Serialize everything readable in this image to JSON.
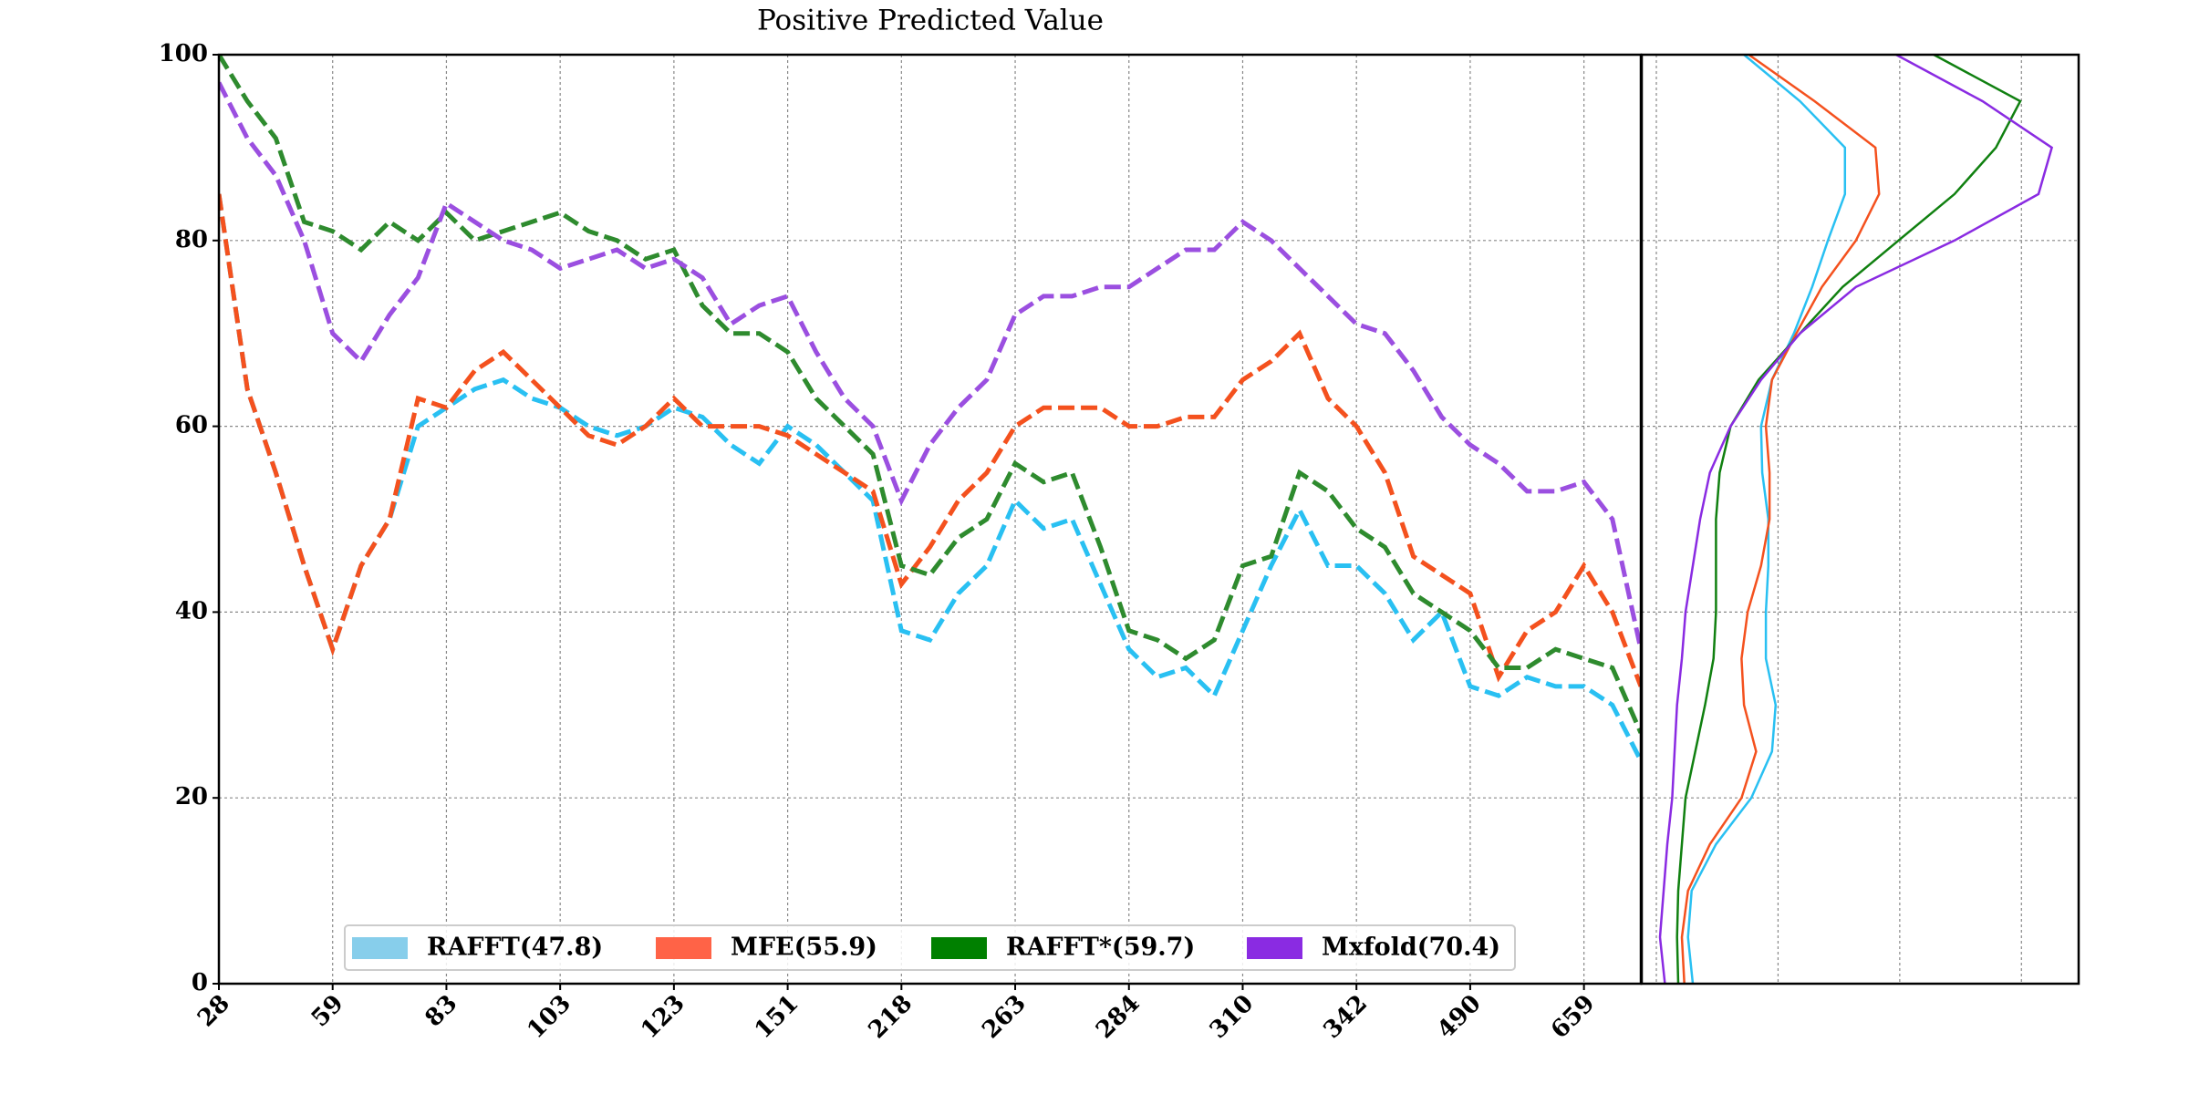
{
  "chart_data": [
    {
      "type": "line",
      "title": "Positive Predicted Value",
      "x": [
        0,
        5,
        10,
        15,
        20,
        25,
        30,
        35,
        40,
        45,
        50,
        55,
        60,
        65,
        70,
        75,
        80,
        85,
        90,
        95,
        100,
        105,
        110,
        115,
        120,
        125,
        130,
        135,
        140,
        145,
        150,
        155,
        160,
        165,
        170,
        175,
        180,
        185,
        190,
        195,
        200,
        205,
        210,
        215,
        220,
        225,
        230,
        235,
        240,
        245,
        250
      ],
      "xlim": [
        0,
        250
      ],
      "xticks": [
        {
          "value": 0,
          "label": "28"
        },
        {
          "value": 20,
          "label": "59"
        },
        {
          "value": 40,
          "label": "83"
        },
        {
          "value": 60,
          "label": "103"
        },
        {
          "value": 80,
          "label": "123"
        },
        {
          "value": 100,
          "label": "151"
        },
        {
          "value": 120,
          "label": "218"
        },
        {
          "value": 140,
          "label": "263"
        },
        {
          "value": 160,
          "label": "284"
        },
        {
          "value": 180,
          "label": "310"
        },
        {
          "value": 200,
          "label": "342"
        },
        {
          "value": 220,
          "label": "490"
        },
        {
          "value": 240,
          "label": "659"
        }
      ],
      "ylim": [
        0,
        100
      ],
      "yticks": [
        0,
        20,
        40,
        60,
        80,
        100
      ],
      "grid": true,
      "legend": "lower center",
      "series": [
        {
          "name": "RAFFT(47.8)",
          "color": "#29c0f2",
          "legend_color": "#87ceeb",
          "values": [
            85,
            64,
            55,
            45,
            36,
            45,
            50,
            60,
            62,
            64,
            65,
            63,
            62,
            60,
            59,
            60,
            62,
            61,
            58,
            56,
            60,
            58,
            55,
            52,
            38,
            37,
            42,
            45,
            52,
            49,
            50,
            43,
            36,
            33,
            34,
            31,
            38,
            45,
            51,
            45,
            45,
            42,
            37,
            40,
            32,
            31,
            33,
            32,
            32,
            30,
            24
          ]
        },
        {
          "name": "MFE(55.9)",
          "color": "#f4511e",
          "legend_color": "#ff6347",
          "values": [
            85,
            64,
            55,
            45,
            36,
            45,
            50,
            63,
            62,
            66,
            68,
            65,
            62,
            59,
            58,
            60,
            63,
            60,
            60,
            60,
            59,
            57,
            55,
            53,
            43,
            47,
            52,
            55,
            60,
            62,
            62,
            62,
            60,
            60,
            61,
            61,
            65,
            67,
            70,
            63,
            60,
            55,
            46,
            44,
            42,
            33,
            38,
            40,
            45,
            40,
            32
          ]
        },
        {
          "name": "RAFFT*(59.7)",
          "color": "#2e8b2e",
          "legend_color": "#008000",
          "values": [
            100,
            95,
            91,
            82,
            81,
            79,
            82,
            80,
            83,
            80,
            81,
            82,
            83,
            81,
            80,
            78,
            79,
            73,
            70,
            70,
            68,
            63,
            60,
            57,
            45,
            44,
            48,
            50,
            56,
            54,
            55,
            47,
            38,
            37,
            35,
            37,
            45,
            46,
            55,
            53,
            49,
            47,
            42,
            40,
            38,
            34,
            34,
            36,
            35,
            34,
            27
          ]
        },
        {
          "name": "Mxfold(70.4)",
          "color": "#9b4fe0",
          "legend_color": "#8a2be2",
          "values": [
            97,
            91,
            87,
            80,
            70,
            67,
            72,
            76,
            84,
            82,
            80,
            79,
            77,
            78,
            79,
            77,
            78,
            76,
            71,
            73,
            74,
            68,
            63,
            60,
            52,
            58,
            62,
            65,
            72,
            74,
            74,
            75,
            75,
            77,
            79,
            79,
            82,
            80,
            77,
            74,
            71,
            70,
            66,
            61,
            58,
            56,
            53,
            53,
            54,
            50,
            36
          ]
        }
      ]
    },
    {
      "type": "density",
      "y": [
        0,
        5,
        10,
        15,
        20,
        25,
        30,
        35,
        40,
        45,
        50,
        55,
        60,
        65,
        70,
        75,
        80,
        85,
        90,
        95,
        100
      ],
      "ylim": [
        0,
        100
      ],
      "yticks": [
        0,
        20,
        40,
        60,
        80,
        100
      ],
      "xlim": [
        -0.12,
        3.47
      ],
      "xgrid": [
        0,
        1,
        2,
        3
      ],
      "series": [
        {
          "color": "#29c0f2",
          "values": [
            0.3,
            0.26,
            0.29,
            0.49,
            0.78,
            0.95,
            0.98,
            0.9,
            0.9,
            0.92,
            0.92,
            0.87,
            0.86,
            0.95,
            1.13,
            1.28,
            1.41,
            1.55,
            1.55,
            1.18,
            0.72
          ]
        },
        {
          "color": "#f4511e",
          "values": [
            0.23,
            0.21,
            0.26,
            0.44,
            0.7,
            0.82,
            0.72,
            0.7,
            0.75,
            0.86,
            0.93,
            0.93,
            0.9,
            0.95,
            1.15,
            1.36,
            1.64,
            1.83,
            1.8,
            1.3,
            0.76
          ]
        },
        {
          "color": "#108010",
          "values": [
            0.18,
            0.17,
            0.18,
            0.21,
            0.24,
            0.32,
            0.4,
            0.47,
            0.49,
            0.49,
            0.49,
            0.52,
            0.61,
            0.84,
            1.18,
            1.53,
            1.99,
            2.45,
            2.79,
            2.99,
            2.28
          ]
        },
        {
          "color": "#8a2be2",
          "values": [
            0.07,
            0.03,
            0.06,
            0.09,
            0.13,
            0.15,
            0.17,
            0.21,
            0.24,
            0.3,
            0.36,
            0.44,
            0.61,
            0.86,
            1.18,
            1.64,
            2.45,
            3.14,
            3.25,
            2.68,
            1.97
          ]
        }
      ]
    }
  ]
}
